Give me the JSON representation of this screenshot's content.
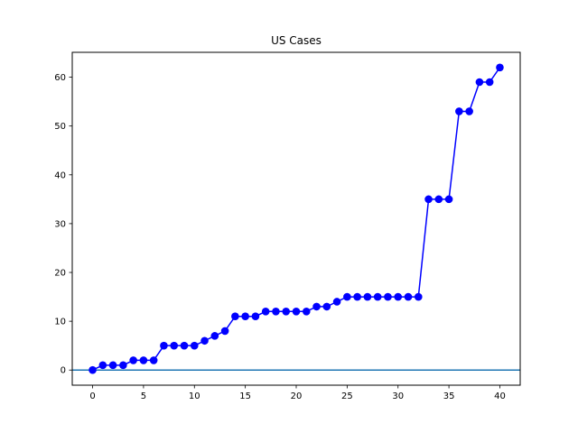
{
  "chart_data": {
    "type": "line",
    "title": "US Cases",
    "xlabel": "",
    "ylabel": "",
    "xlim": [
      -2,
      42
    ],
    "ylim": [
      -3.1,
      65.1
    ],
    "xticks": [
      0,
      5,
      10,
      15,
      20,
      25,
      30,
      35,
      40
    ],
    "yticks": [
      0,
      10,
      20,
      30,
      40,
      50,
      60
    ],
    "grid": false,
    "legend": "none",
    "series": [
      {
        "color": "#0000ff",
        "marker": "circle",
        "x": [
          0,
          1,
          2,
          3,
          4,
          5,
          6,
          7,
          8,
          9,
          10,
          11,
          12,
          13,
          14,
          15,
          16,
          17,
          18,
          19,
          20,
          21,
          22,
          23,
          24,
          25,
          26,
          27,
          28,
          29,
          30,
          31,
          32,
          33,
          34,
          35,
          36,
          37,
          38,
          39,
          40
        ],
        "y": [
          0,
          1,
          1,
          1,
          2,
          2,
          2,
          5,
          5,
          5,
          5,
          6,
          7,
          8,
          11,
          11,
          11,
          12,
          12,
          12,
          12,
          12,
          13,
          13,
          14,
          15,
          15,
          15,
          15,
          15,
          15,
          15,
          15,
          35,
          35,
          35,
          53,
          53,
          59,
          59,
          62
        ]
      }
    ],
    "reference_lines": [
      {
        "orientation": "horizontal",
        "y": 0,
        "color": "#1f77b4"
      }
    ]
  }
}
